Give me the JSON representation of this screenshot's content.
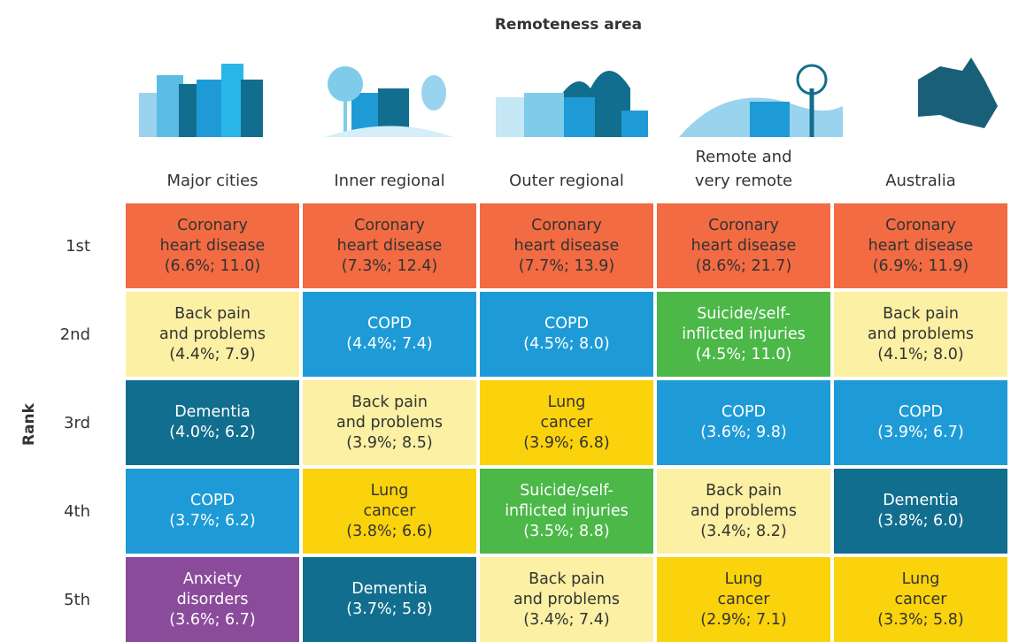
{
  "title": "Remoteness area",
  "row_axis": "Rank",
  "columns": [
    [
      "Major cities"
    ],
    [
      "Inner regional"
    ],
    [
      "Outer regional"
    ],
    [
      "Remote and",
      "very remote"
    ],
    [
      "Australia"
    ]
  ],
  "ranks": [
    "1st",
    "2nd",
    "3rd",
    "4th",
    "5th"
  ],
  "cells": [
    [
      {
        "label": [
          "Coronary",
          "heart disease"
        ],
        "stats": "(6.6%; 11.0)",
        "color": "#f26b43",
        "text_color": "#333333"
      },
      {
        "label": [
          "Coronary",
          "heart disease"
        ],
        "stats": "(7.3%; 12.4)",
        "color": "#f26b43",
        "text_color": "#333333"
      },
      {
        "label": [
          "Coronary",
          "heart disease"
        ],
        "stats": "(7.7%; 13.9)",
        "color": "#f26b43",
        "text_color": "#333333"
      },
      {
        "label": [
          "Coronary",
          "heart disease"
        ],
        "stats": "(8.6%; 21.7)",
        "color": "#f26b43",
        "text_color": "#333333"
      },
      {
        "label": [
          "Coronary",
          "heart disease"
        ],
        "stats": "(6.9%; 11.9)",
        "color": "#f26b43",
        "text_color": "#333333"
      }
    ],
    [
      {
        "label": [
          "Back pain",
          "and problems"
        ],
        "stats": "(4.4%; 7.9)",
        "color": "#fbf0a3",
        "text_color": "#333333"
      },
      {
        "label": [
          "COPD"
        ],
        "stats": "(4.4%; 7.4)",
        "color": "#1e9bd7",
        "text_color": "#ffffff"
      },
      {
        "label": [
          "COPD"
        ],
        "stats": "(4.5%; 8.0)",
        "color": "#1e9bd7",
        "text_color": "#ffffff"
      },
      {
        "label": [
          "Suicide/self-",
          "inflicted injuries"
        ],
        "stats": "(4.5%; 11.0)",
        "color": "#4bb848",
        "text_color": "#ffffff"
      },
      {
        "label": [
          "Back pain",
          "and problems"
        ],
        "stats": "(4.1%; 8.0)",
        "color": "#fbf0a3",
        "text_color": "#333333"
      }
    ],
    [
      {
        "label": [
          "Dementia"
        ],
        "stats": "(4.0%; 6.2)",
        "color": "#126e8e",
        "text_color": "#ffffff"
      },
      {
        "label": [
          "Back pain",
          "and problems"
        ],
        "stats": "(3.9%; 8.5)",
        "color": "#fbf0a3",
        "text_color": "#333333"
      },
      {
        "label": [
          "Lung",
          "cancer"
        ],
        "stats": "(3.9%; 6.8)",
        "color": "#fbd30c",
        "text_color": "#333333"
      },
      {
        "label": [
          "COPD"
        ],
        "stats": "(3.6%; 9.8)",
        "color": "#1e9bd7",
        "text_color": "#ffffff"
      },
      {
        "label": [
          "COPD"
        ],
        "stats": "(3.9%; 6.7)",
        "color": "#1e9bd7",
        "text_color": "#ffffff"
      }
    ],
    [
      {
        "label": [
          "COPD"
        ],
        "stats": "(3.7%; 6.2)",
        "color": "#1e9bd7",
        "text_color": "#ffffff"
      },
      {
        "label": [
          "Lung",
          "cancer"
        ],
        "stats": "(3.8%; 6.6)",
        "color": "#fbd30c",
        "text_color": "#333333"
      },
      {
        "label": [
          "Suicide/self-",
          "inflicted injuries"
        ],
        "stats": "(3.5%; 8.8)",
        "color": "#4bb848",
        "text_color": "#ffffff"
      },
      {
        "label": [
          "Back pain",
          "and problems"
        ],
        "stats": "(3.4%; 8.2)",
        "color": "#fbf0a3",
        "text_color": "#333333"
      },
      {
        "label": [
          "Dementia"
        ],
        "stats": "(3.8%; 6.0)",
        "color": "#126e8e",
        "text_color": "#ffffff"
      }
    ],
    [
      {
        "label": [
          "Anxiety",
          "disorders"
        ],
        "stats": "(3.6%; 6.7)",
        "color": "#8b4b9b",
        "text_color": "#ffffff"
      },
      {
        "label": [
          "Dementia"
        ],
        "stats": "(3.7%; 5.8)",
        "color": "#126e8e",
        "text_color": "#ffffff"
      },
      {
        "label": [
          "Back pain",
          "and problems"
        ],
        "stats": "(3.4%; 7.4)",
        "color": "#fbf0a3",
        "text_color": "#333333"
      },
      {
        "label": [
          "Lung",
          "cancer"
        ],
        "stats": "(2.9%; 7.1)",
        "color": "#fbd30c",
        "text_color": "#333333"
      },
      {
        "label": [
          "Lung",
          "cancer"
        ],
        "stats": "(3.3%; 5.8)",
        "color": "#fbd30c",
        "text_color": "#333333"
      }
    ]
  ]
}
